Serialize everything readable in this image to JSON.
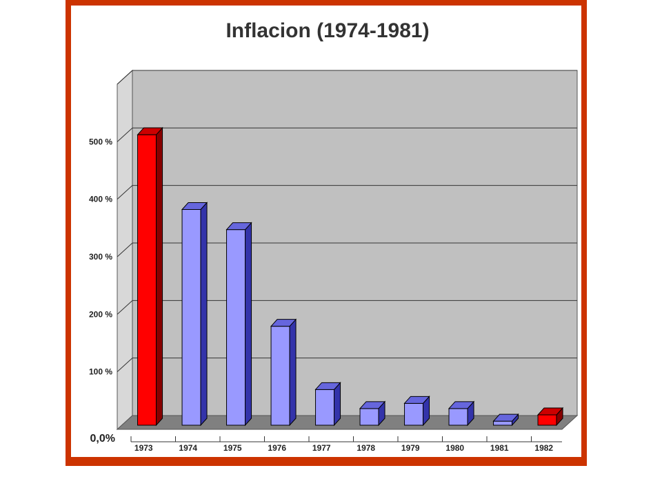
{
  "chart_data": {
    "type": "bar",
    "title": "Inflacion (1974-1981)",
    "categories": [
      "1973",
      "1974",
      "1975",
      "1976",
      "1977",
      "1978",
      "1979",
      "1980",
      "1981",
      "1982"
    ],
    "values": [
      505,
      375,
      340,
      172,
      62,
      29,
      38,
      29,
      7,
      18
    ],
    "highlight": [
      true,
      false,
      false,
      false,
      false,
      false,
      false,
      false,
      false,
      true
    ],
    "yticks": [
      "0,0%",
      "100 %",
      "200 %",
      "300 %",
      "400 %",
      "500 %"
    ],
    "ylim": [
      0,
      600
    ],
    "xlabel": "",
    "ylabel": "",
    "grid": true,
    "legend": "none",
    "colors": {
      "bar": "#9999ff",
      "bar_side": "#3333aa",
      "bar_top": "#6666dd",
      "highlight": "#ff0000",
      "highlight_side": "#880000",
      "highlight_top": "#cc0000",
      "wall": "#c0c0c0",
      "floor": "#808080",
      "frame": "#cc3300"
    }
  }
}
